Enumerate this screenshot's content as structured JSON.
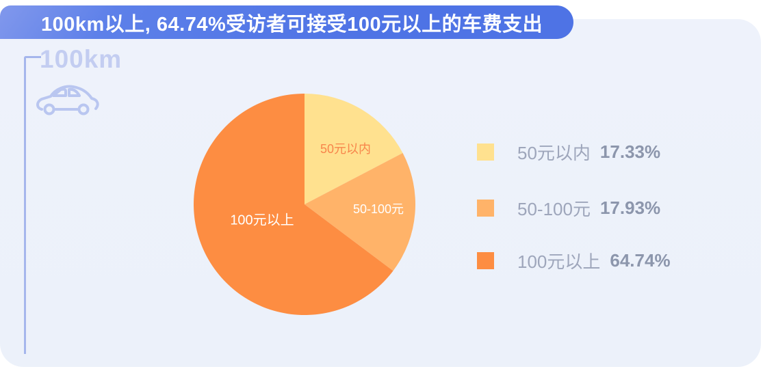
{
  "banner": {
    "title": "100km以上, 64.74%受访者可接受100元以上的车费支出"
  },
  "section": {
    "label": "100km",
    "icon": "car-icon"
  },
  "chart_data": {
    "type": "pie",
    "title": "100km以上, 64.74%受访者可接受100元以上的车费支出",
    "labels": [
      "50元以内",
      "50-100元",
      "100元以上"
    ],
    "values": [
      17.33,
      17.93,
      64.74
    ],
    "unit": "%",
    "colors": [
      "#FFE18F",
      "#FFB369",
      "#FD8D42"
    ],
    "slice_label_colors": [
      "#F8854B",
      "#FFFFFF",
      "#FFFFFF"
    ],
    "start_angle_deg": 0,
    "direction": "clockwise",
    "legend_position": "right",
    "grid": false
  },
  "legend": {
    "items": [
      {
        "label": "50元以内",
        "value": "17.33%"
      },
      {
        "label": "50-100元",
        "value": "17.93%"
      },
      {
        "label": "100元以上",
        "value": "64.74%"
      }
    ]
  },
  "theme": {
    "banner_blue": "#4E73E5",
    "panel_bg": "#EDF1FB",
    "section_title_color": "#C3CDF1",
    "bracket_line_color": "#A5B6EC",
    "legend_label_color": "#9EA6BB",
    "legend_value_color": "#8C96AC"
  }
}
